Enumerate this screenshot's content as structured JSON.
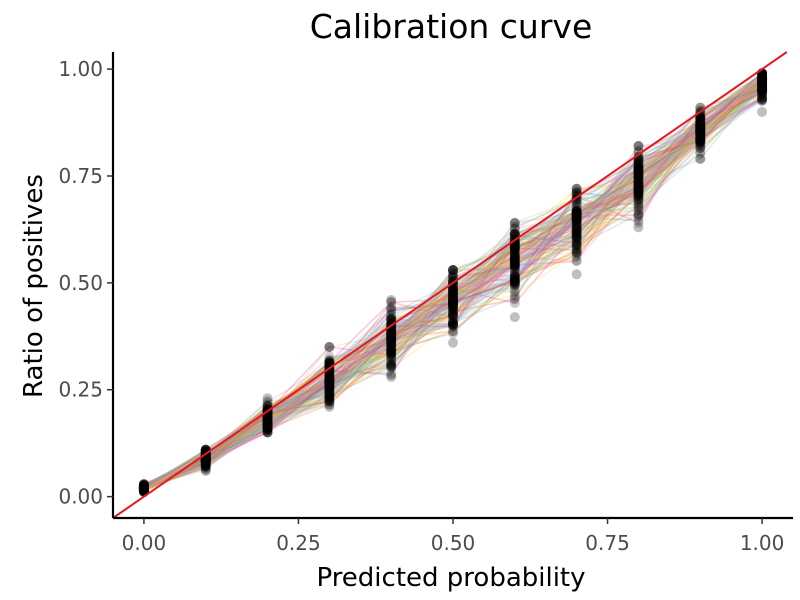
{
  "chart_data": {
    "type": "line",
    "title": "Calibration curve",
    "xlabel": "Predicted probability",
    "ylabel": "Ratio of positives",
    "xlim": [
      -0.05,
      1.05
    ],
    "ylim": [
      -0.05,
      1.04
    ],
    "x_ticks": [
      "0.00",
      "0.25",
      "0.50",
      "0.75",
      "1.00"
    ],
    "y_ticks": [
      "0.00",
      "0.25",
      "0.50",
      "0.75",
      "1.00"
    ],
    "grid": false,
    "legend": "none",
    "x": [
      0.0,
      0.1,
      0.2,
      0.3,
      0.4,
      0.5,
      0.6,
      0.7,
      0.8,
      0.9,
      1.0
    ],
    "mean_ratio": [
      0.02,
      0.09,
      0.18,
      0.27,
      0.37,
      0.46,
      0.55,
      0.64,
      0.74,
      0.85,
      0.97
    ],
    "ratio_min": [
      0.01,
      0.06,
      0.15,
      0.21,
      0.28,
      0.36,
      0.42,
      0.52,
      0.63,
      0.79,
      0.9
    ],
    "ratio_max": [
      0.03,
      0.11,
      0.23,
      0.35,
      0.46,
      0.53,
      0.64,
      0.72,
      0.82,
      0.91,
      0.99
    ],
    "resample_count": 120,
    "reference_line": {
      "x": [
        0,
        1
      ],
      "y": [
        0,
        1
      ],
      "color": "#e41a1c"
    },
    "point_color": "#000000",
    "line_palette": [
      "#e7298a",
      "#7570b3",
      "#66c2a5",
      "#a6d854",
      "#8da0cb",
      "#fc8d62",
      "#e78ac3",
      "#ffd92f",
      "#80b1d3",
      "#d95f02"
    ]
  }
}
